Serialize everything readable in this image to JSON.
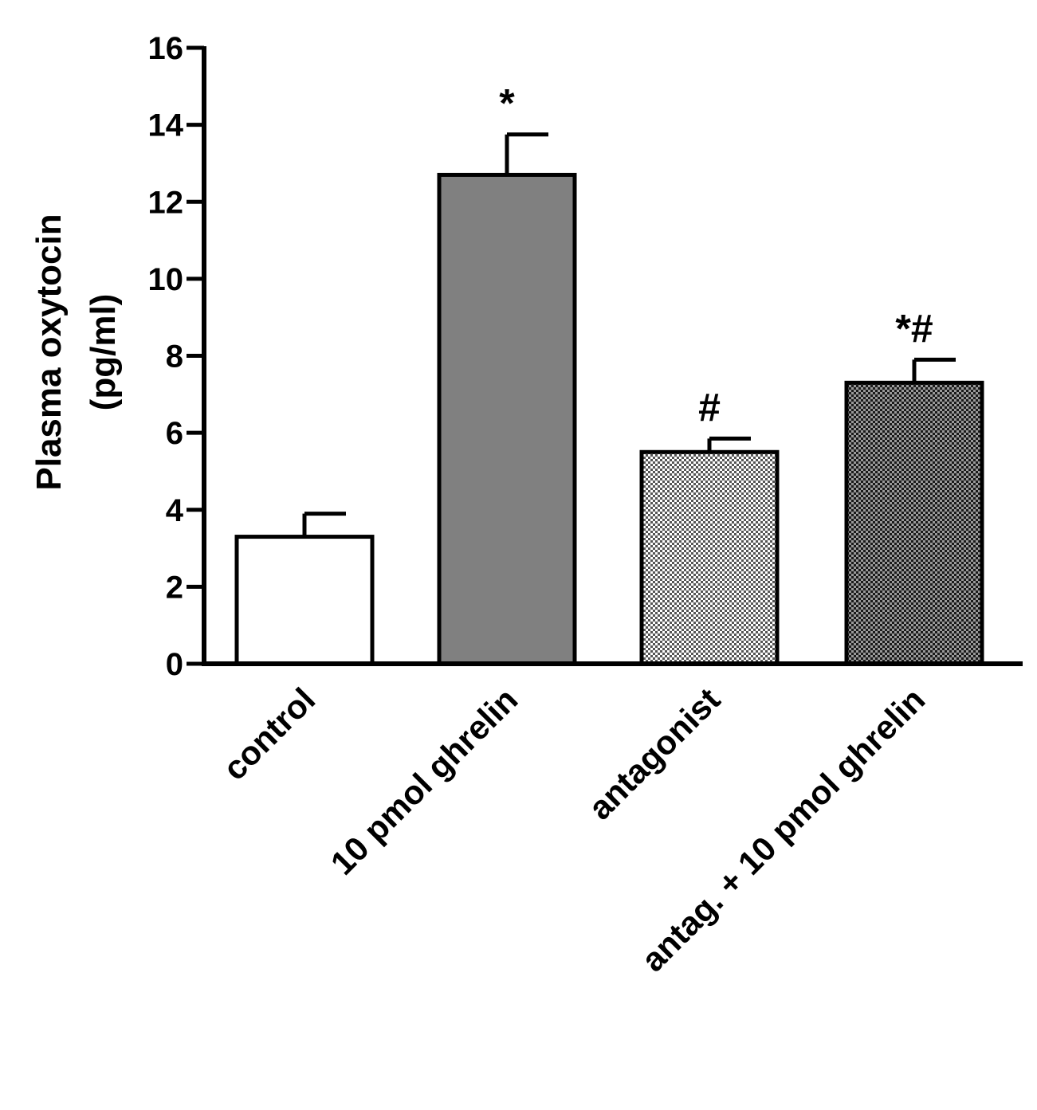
{
  "chart_data": {
    "type": "bar",
    "title": "",
    "ylabel": "Plasma oxytocin",
    "ylabel_unit": "(pg/ml)",
    "xlabel": "",
    "ylim": [
      0,
      16
    ],
    "yticks": [
      "0",
      "2",
      "4",
      "6",
      "8",
      "10",
      "12",
      "14",
      "16"
    ],
    "categories": [
      "control",
      "10 pmol ghrelin",
      "antagonist",
      "antag. + 10 pmol ghrelin"
    ],
    "values": [
      3.3,
      12.7,
      5.5,
      7.3
    ],
    "errors": [
      0.6,
      1.05,
      0.35,
      0.6
    ],
    "annotations": [
      "",
      "*",
      "#",
      "*#"
    ],
    "bar_fills": [
      "white",
      "solid-gray",
      "light-checker",
      "dark-checker"
    ],
    "colors": {
      "axis": "#000000",
      "solid_gray": "#808080",
      "light_checker": "#bdbdbd",
      "dark_checker": "#5a5a5a"
    },
    "grid": false,
    "legend": "none"
  }
}
